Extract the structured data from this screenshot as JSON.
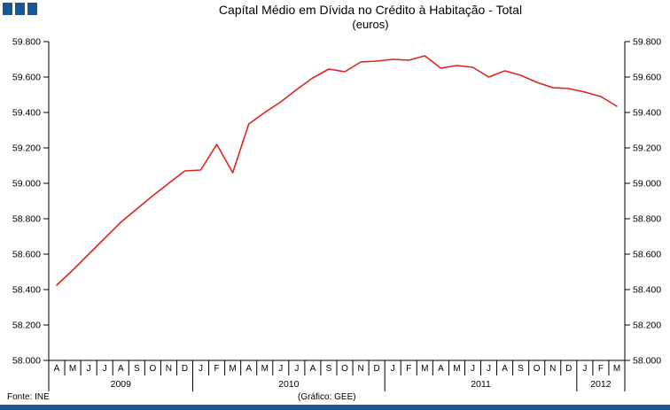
{
  "header": {
    "title": "Capítal Médio em Dívida no Crédito à Habitação - Total",
    "subtitle": "(euros)"
  },
  "footer": {
    "source": "Fonte: INE",
    "credit": "(Gráfico:  GEE)"
  },
  "logo": {
    "name": "three-squares-logo",
    "color": "#1a5796",
    "square_count": 3
  },
  "colors": {
    "brand_navy": "#1a5796",
    "line_red": "#dc241f",
    "axis_black": "#000000"
  },
  "chart_data": {
    "type": "line",
    "title": "Capítal Médio em Dívida no Crédito à Habitação - Total",
    "subtitle": "(euros)",
    "xlabel": "",
    "ylabel": "",
    "ylim": [
      58000,
      59800
    ],
    "ytick_step": 200,
    "ytick_labels": [
      "58.000",
      "58.200",
      "58.400",
      "58.600",
      "58.800",
      "59.000",
      "59.200",
      "59.400",
      "59.600",
      "59.800"
    ],
    "grid": false,
    "legend_position": "none",
    "line_color": "#dc241f",
    "axes": "left-and-right-value-axes",
    "years": [
      {
        "label": "2009",
        "months": [
          "A",
          "M",
          "J",
          "J",
          "A",
          "S",
          "O",
          "N",
          "D"
        ],
        "values": [
          58425,
          58510,
          58600,
          58690,
          58780,
          58855,
          58930,
          59000,
          59070
        ]
      },
      {
        "label": "2010",
        "months": [
          "J",
          "F",
          "M",
          "A",
          "M",
          "J",
          "J",
          "A",
          "S",
          "O",
          "N",
          "D"
        ],
        "values": [
          59075,
          59220,
          59060,
          59335,
          59400,
          59460,
          59530,
          59595,
          59645,
          59630,
          59685,
          59690
        ]
      },
      {
        "label": "2011",
        "months": [
          "J",
          "F",
          "M",
          "A",
          "M",
          "J",
          "J",
          "A",
          "S",
          "O",
          "N",
          "D"
        ],
        "values": [
          59700,
          59695,
          59720,
          59650,
          59665,
          59655,
          59600,
          59635,
          59610,
          59570,
          59540,
          59535
        ]
      },
      {
        "label": "2012",
        "months": [
          "J",
          "F",
          "M"
        ],
        "values": [
          59515,
          59490,
          59435
        ]
      }
    ]
  }
}
